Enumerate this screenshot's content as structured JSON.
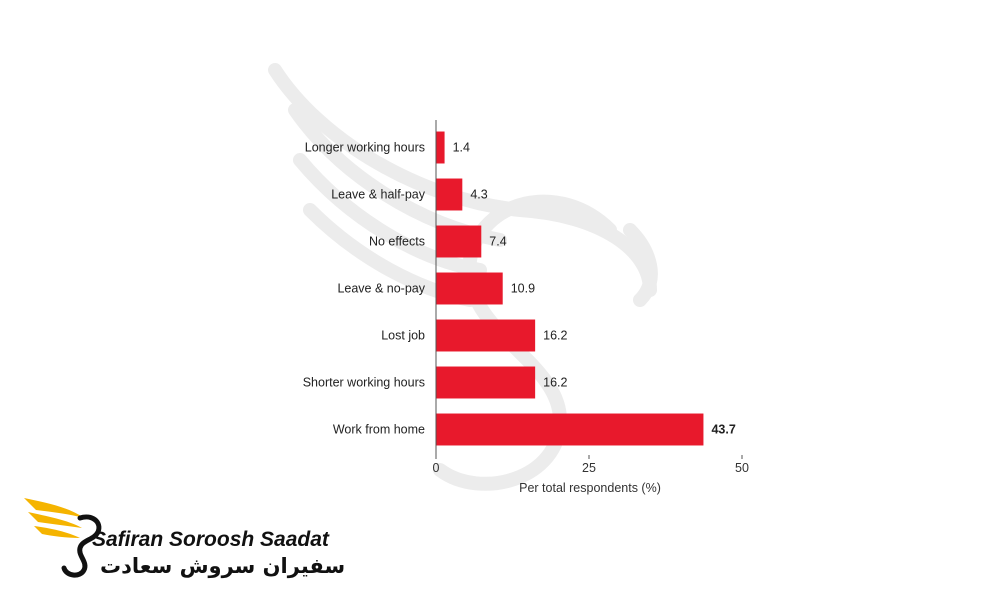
{
  "chart_data": {
    "type": "bar",
    "orientation": "horizontal",
    "categories": [
      "Longer working hours",
      "Leave & half-pay",
      "No effects",
      "Leave & no-pay",
      "Lost job",
      "Shorter working hours",
      "Work from home"
    ],
    "values": [
      1.4,
      4.3,
      7.4,
      10.9,
      16.2,
      16.2,
      43.7
    ],
    "value_labels": [
      "1.4",
      "4.3",
      "7.4",
      "10.9",
      "16.2",
      "16.2",
      "43.7"
    ],
    "xlabel": "Per total respondents (%)",
    "ylabel": "",
    "xlim": [
      0,
      50
    ],
    "xticks": [
      "0",
      "25",
      "50"
    ],
    "grid": false,
    "bar_color": "#e8192c"
  },
  "logo": {
    "name_en": "Safiran Soroosh Saadat",
    "name_fa": "سفیران سروش سعادت",
    "color_wing": "#f5b400"
  }
}
